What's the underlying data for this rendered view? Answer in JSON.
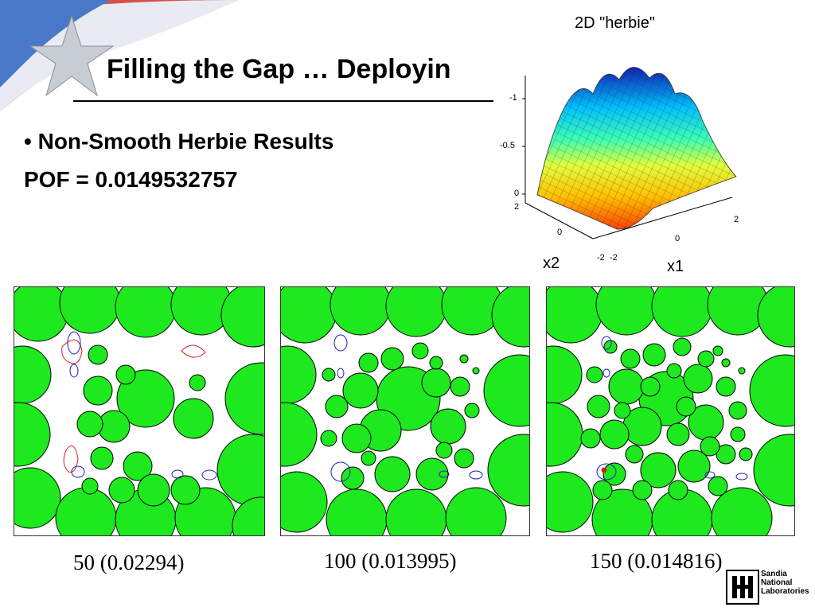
{
  "slide": {
    "title": "Filling the Gap … Deployin",
    "bullet": "Non-Smooth Herbie Results",
    "bullet_mark": "•",
    "pof_line": "POF = 0.0149532757"
  },
  "surface_plot": {
    "title": "2D \"herbie\"",
    "xlabel": "x1",
    "ylabel": "x2",
    "z_ticks": [
      "-1",
      "-0.5",
      "0"
    ],
    "x_ticks": [
      "-2",
      "0",
      "2"
    ],
    "y_ticks": [
      "2",
      "0",
      "-2"
    ]
  },
  "panels": [
    {
      "caption": "50 (0.02294)"
    },
    {
      "caption": "100 (0.013995)"
    },
    {
      "caption": "150 (0.014816)"
    }
  ],
  "logo": {
    "name_lines": [
      "Sandia",
      "National",
      "Laboratories"
    ]
  },
  "colors": {
    "circle_fill": "#1ee81e",
    "contour_red": "#d62020",
    "contour_blue": "#2020c0"
  }
}
